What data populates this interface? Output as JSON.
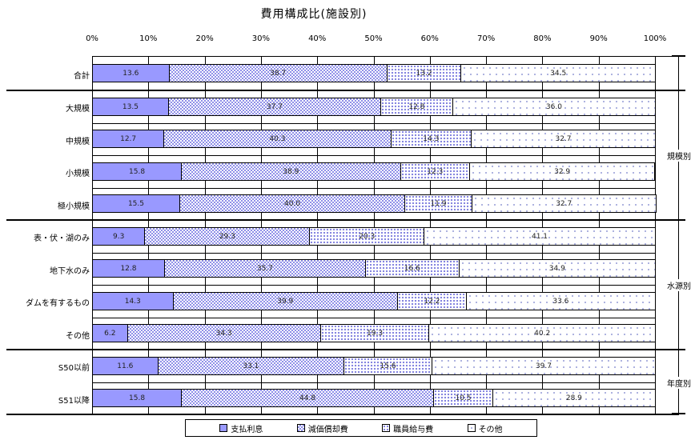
{
  "title": "費用構成比(施設別)",
  "axis_ticks": [
    "0%",
    "10%",
    "20%",
    "30%",
    "40%",
    "50%",
    "60%",
    "70%",
    "80%",
    "90%",
    "100%"
  ],
  "legend_items": [
    "支払利息",
    "減価償却費",
    "職員給与費",
    "その他"
  ],
  "group_labels": [
    "規模別",
    "水源別",
    "年度別"
  ],
  "colors": {
    "series1_fill": "#9999ff",
    "pattern_dot": "#8f8fe8",
    "border": "#000000",
    "background": "#ffffff"
  },
  "chart_data": {
    "type": "bar",
    "stacked": true,
    "orientation": "horizontal",
    "title": "費用構成比(施設別)",
    "xlabel": "",
    "ylabel": "",
    "xlim": [
      0,
      100
    ],
    "x_tick_labels": [
      "0%",
      "10%",
      "20%",
      "30%",
      "40%",
      "50%",
      "60%",
      "70%",
      "80%",
      "90%",
      "100%"
    ],
    "grid": true,
    "legend_position": "bottom",
    "categories": [
      "合計",
      "大規模",
      "中規模",
      "小規模",
      "極小規模",
      "表・伏・湖のみ",
      "地下水のみ",
      "ダムを有するもの",
      "その他",
      "S50以前",
      "S51以降"
    ],
    "series": [
      {
        "name": "支払利息",
        "values": [
          13.6,
          13.5,
          12.7,
          15.8,
          15.5,
          9.3,
          12.8,
          14.3,
          6.2,
          11.6,
          15.8
        ]
      },
      {
        "name": "減価償却費",
        "values": [
          38.7,
          37.7,
          40.3,
          38.9,
          40.0,
          29.3,
          35.7,
          39.9,
          34.3,
          33.1,
          44.8
        ]
      },
      {
        "name": "職員給与費",
        "values": [
          13.2,
          12.8,
          14.3,
          12.3,
          11.9,
          20.3,
          16.6,
          12.2,
          19.3,
          15.6,
          10.5
        ]
      },
      {
        "name": "その他",
        "values": [
          34.5,
          36.0,
          32.7,
          32.9,
          32.7,
          41.1,
          34.9,
          33.6,
          40.2,
          39.7,
          28.9
        ]
      }
    ],
    "row_groups": [
      {
        "label": "",
        "categories": [
          "合計"
        ]
      },
      {
        "label": "規模別",
        "categories": [
          "大規模",
          "中規模",
          "小規模",
          "極小規模"
        ]
      },
      {
        "label": "水源別",
        "categories": [
          "表・伏・湖のみ",
          "地下水のみ",
          "ダムを有するもの",
          "その他"
        ]
      },
      {
        "label": "年度別",
        "categories": [
          "S50以前",
          "S51以降"
        ]
      }
    ]
  }
}
